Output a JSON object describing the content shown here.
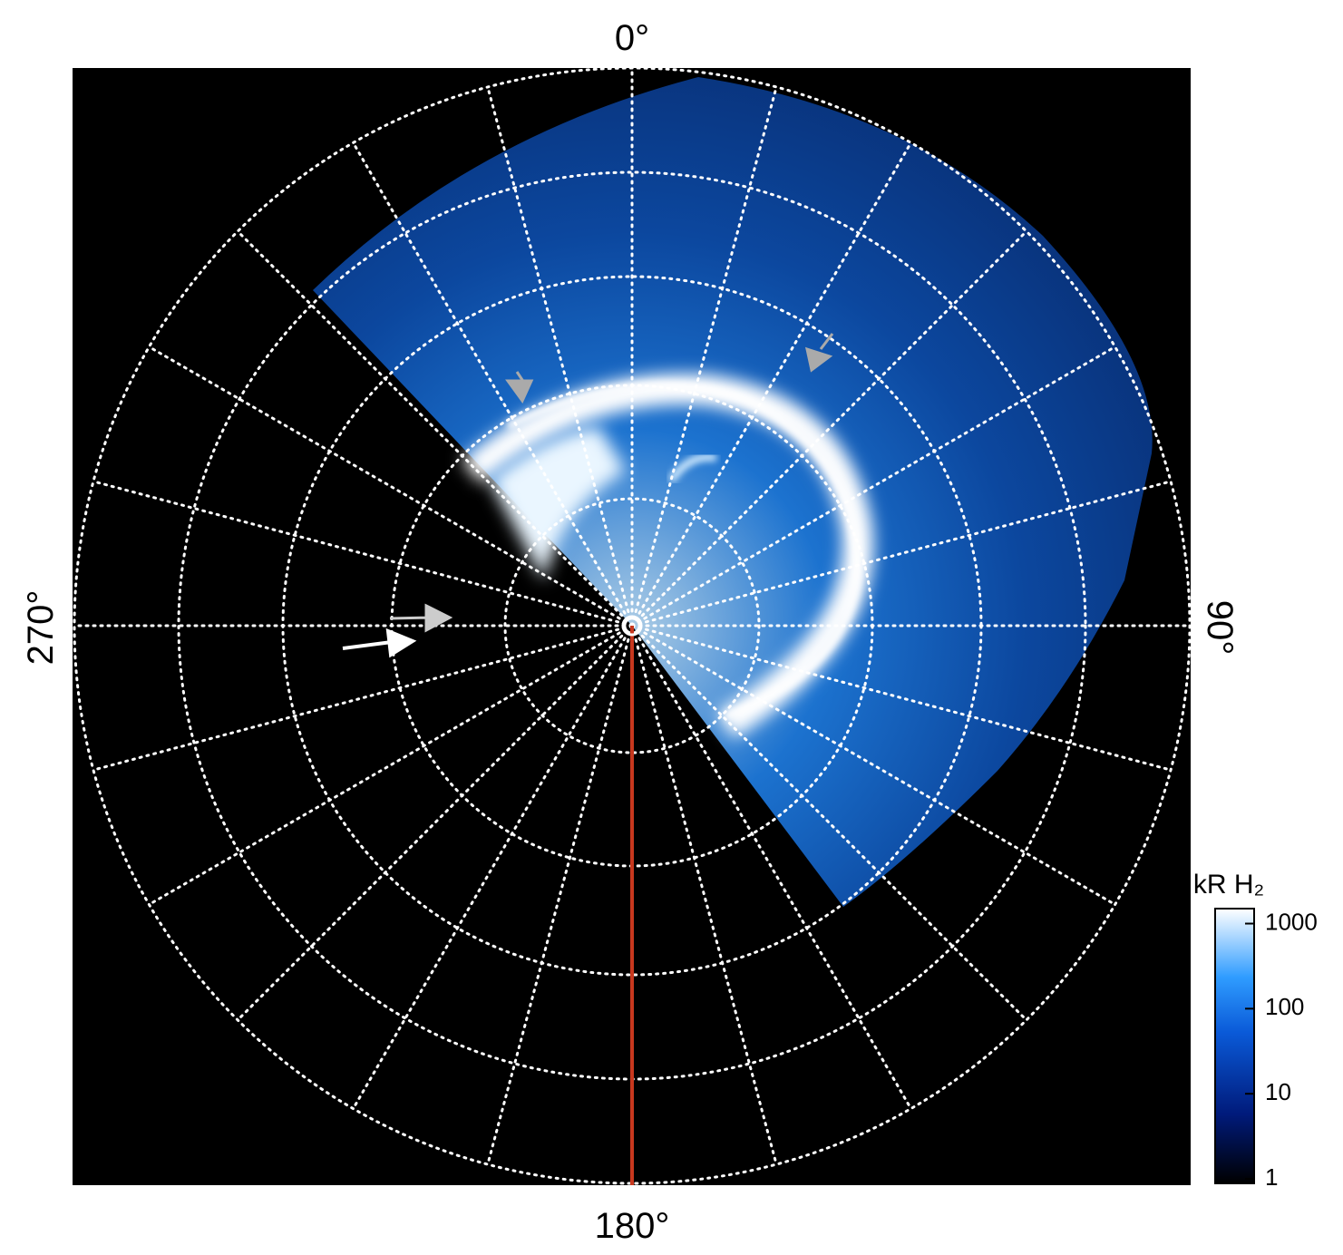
{
  "labels": {
    "top": "0°",
    "right": "90°",
    "bottom": "180°",
    "left": "270°"
  },
  "colorbar": {
    "title": "kR H₂",
    "scale": "log",
    "lim": [
      1,
      1500
    ],
    "ticks": [
      1,
      10,
      100,
      1000
    ]
  }
}
